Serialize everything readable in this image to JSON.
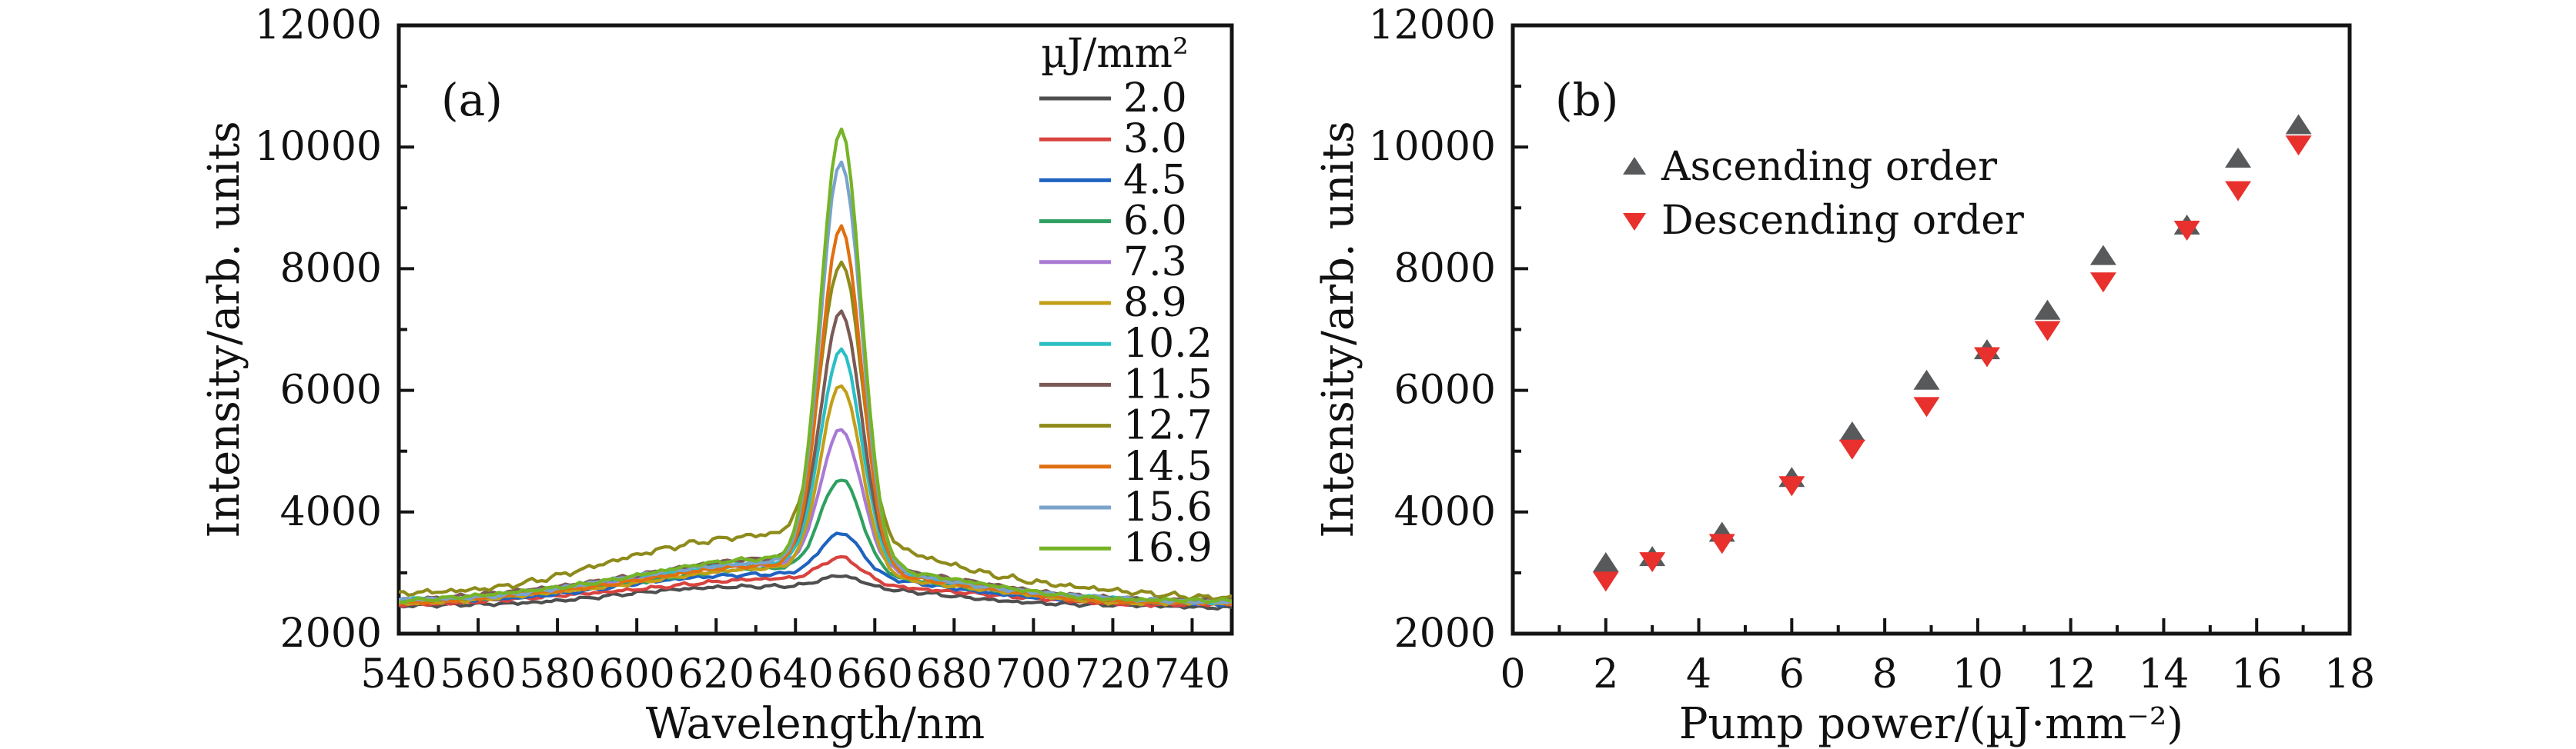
{
  "figure": {
    "background": "#ffffff",
    "axis_color": "#141414"
  },
  "chart_data": [
    {
      "id": "a",
      "type": "line",
      "panel_label": "(a)",
      "title": "",
      "xlabel": "Wavelength/nm",
      "ylabel": "Intensity/arb. units",
      "xlim": [
        540,
        750
      ],
      "ylim": [
        2000,
        12000
      ],
      "x_major_ticks": [
        540,
        560,
        580,
        600,
        620,
        640,
        660,
        680,
        700,
        720,
        740
      ],
      "x_minor_tick_step": 10,
      "y_major_ticks": [
        2000,
        4000,
        6000,
        8000,
        10000,
        12000
      ],
      "y_minor_tick_step": 1000,
      "grid": false,
      "legend_title": "µJ/mm²",
      "legend_position": "upper right inside",
      "peak_wavelength_nm": 651,
      "series": [
        {
          "label": "2.0",
          "color": "#4f4f4f",
          "peak_intensity": 2950,
          "low": 2430,
          "hump": 360,
          "noise_amp": 36,
          "sample_nm": [
            540,
            620,
            651,
            750
          ],
          "sample_intensity": [
            2440,
            2760,
            2950,
            2440
          ]
        },
        {
          "label": "3.0",
          "color": "#d8433f",
          "peak_intensity": 3250,
          "low": 2470,
          "hump": 420,
          "noise_amp": 36,
          "sample_nm": [
            540,
            620,
            651,
            750
          ],
          "sample_intensity": [
            2490,
            2855,
            3250,
            2475
          ]
        },
        {
          "label": "4.5",
          "color": "#1f63c0",
          "peak_intensity": 3650,
          "low": 2490,
          "hump": 500,
          "noise_amp": 36,
          "sample_nm": [
            540,
            620,
            651,
            750
          ],
          "sample_intensity": [
            2510,
            2950,
            3650,
            2500
          ]
        },
        {
          "label": "6.0",
          "color": "#2fa061",
          "peak_intensity": 4550,
          "low": 2500,
          "hump": 560,
          "noise_amp": 36,
          "sample_nm": [
            540,
            620,
            651,
            750
          ],
          "sample_intensity": [
            2520,
            3010,
            4550,
            2510
          ]
        },
        {
          "label": "7.3",
          "color": "#a87ad5",
          "peak_intensity": 5350,
          "low": 2510,
          "hump": 620,
          "noise_amp": 36,
          "sample_nm": [
            540,
            620,
            651,
            750
          ],
          "sample_intensity": [
            2540,
            3080,
            5350,
            2520
          ]
        },
        {
          "label": "8.9",
          "color": "#c29f18",
          "peak_intensity": 6100,
          "low": 2480,
          "hump": 580,
          "noise_amp": 38,
          "sample_nm": [
            540,
            620,
            651,
            750
          ],
          "sample_intensity": [
            2500,
            3010,
            6100,
            2490
          ]
        },
        {
          "label": "10.2",
          "color": "#2abfc4",
          "peak_intensity": 6650,
          "low": 2520,
          "hump": 640,
          "noise_amp": 38,
          "sample_nm": [
            540,
            620,
            651,
            750
          ],
          "sample_intensity": [
            2550,
            3110,
            6650,
            2530
          ]
        },
        {
          "label": "11.5",
          "color": "#7b5a55",
          "peak_intensity": 7300,
          "low": 2540,
          "hump": 680,
          "noise_amp": 38,
          "sample_nm": [
            540,
            620,
            651,
            750
          ],
          "sample_intensity": [
            2570,
            3160,
            7300,
            2550
          ]
        },
        {
          "label": "12.7",
          "color": "#8e8b1b",
          "peak_intensity": 8100,
          "low": 2600,
          "hump": 1050,
          "noise_amp": 62,
          "sample_nm": [
            540,
            620,
            651,
            750
          ],
          "sample_intensity": [
            2640,
            3560,
            8100,
            2610
          ]
        },
        {
          "label": "14.5",
          "color": "#e06f10",
          "peak_intensity": 8700,
          "low": 2490,
          "hump": 620,
          "noise_amp": 38,
          "sample_nm": [
            540,
            620,
            651,
            750
          ],
          "sample_intensity": [
            2520,
            3060,
            8700,
            2500
          ]
        },
        {
          "label": "15.6",
          "color": "#7aa3cb",
          "peak_intensity": 9750,
          "low": 2520,
          "hump": 660,
          "noise_amp": 38,
          "sample_nm": [
            540,
            620,
            651,
            750
          ],
          "sample_intensity": [
            2550,
            3130,
            9750,
            2530
          ]
        },
        {
          "label": "16.9",
          "color": "#76b427",
          "peak_intensity": 10300,
          "low": 2520,
          "hump": 700,
          "noise_amp": 40,
          "sample_nm": [
            540,
            620,
            651,
            750
          ],
          "sample_intensity": [
            2550,
            3160,
            10300,
            2530
          ]
        }
      ]
    },
    {
      "id": "b",
      "type": "scatter",
      "panel_label": "(b)",
      "title": "",
      "xlabel": "Pump power/(µJ·mm⁻²)",
      "ylabel": "Intensity/arb. units",
      "xlim": [
        0,
        18
      ],
      "ylim": [
        2000,
        12000
      ],
      "x_major_ticks": [
        0,
        2,
        4,
        6,
        8,
        10,
        12,
        14,
        16,
        18
      ],
      "x_minor_tick_step": 1,
      "y_major_ticks": [
        2000,
        4000,
        6000,
        8000,
        10000,
        12000
      ],
      "y_minor_tick_step": 1000,
      "grid": false,
      "legend_position": "upper left inside",
      "series": [
        {
          "name": "Ascending order",
          "marker": "triangle-up",
          "color": "#58595b",
          "x": [
            2.0,
            3.0,
            4.5,
            6.0,
            7.3,
            8.9,
            10.2,
            11.5,
            12.7,
            14.5,
            15.6,
            16.9
          ],
          "y": [
            3150,
            3250,
            3650,
            4550,
            5300,
            6150,
            6650,
            7300,
            8200,
            8700,
            9800,
            10350
          ]
        },
        {
          "name": "Descending order",
          "marker": "triangle-down",
          "color": "#e8312d",
          "x": [
            2.0,
            3.0,
            4.5,
            6.0,
            7.3,
            8.9,
            10.2,
            11.5,
            12.7,
            14.5,
            15.6,
            16.9
          ],
          "y": [
            2880,
            3200,
            3500,
            4450,
            5050,
            5750,
            6570,
            7000,
            7800,
            8650,
            9300,
            10050
          ]
        }
      ]
    }
  ]
}
